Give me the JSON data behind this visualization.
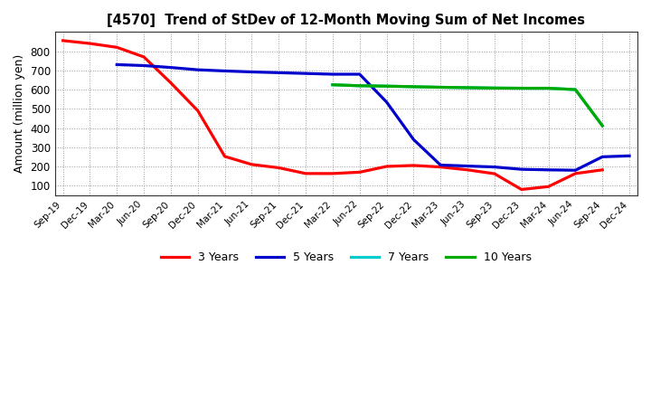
{
  "title": "[4570]  Trend of StDev of 12-Month Moving Sum of Net Incomes",
  "ylabel": "Amount (million yen)",
  "background_color": "#ffffff",
  "grid_color": "#aaaaaa",
  "ylim": [
    50,
    900
  ],
  "yticks": [
    100,
    200,
    300,
    400,
    500,
    600,
    700,
    800
  ],
  "x_labels": [
    "Sep-19",
    "Dec-19",
    "Mar-20",
    "Jun-20",
    "Sep-20",
    "Dec-20",
    "Mar-21",
    "Jun-21",
    "Sep-21",
    "Dec-21",
    "Mar-22",
    "Jun-22",
    "Sep-22",
    "Dec-22",
    "Mar-23",
    "Jun-23",
    "Sep-23",
    "Dec-23",
    "Mar-24",
    "Jun-24",
    "Sep-24",
    "Dec-24"
  ],
  "series": [
    {
      "name": "3 Years",
      "color": "#ff0000",
      "x_indices": [
        0,
        1,
        2,
        3,
        4,
        5,
        6,
        7,
        8,
        9,
        10,
        11,
        12,
        13,
        14,
        15,
        16,
        17,
        18,
        19,
        20
      ],
      "y": [
        855,
        840,
        820,
        770,
        635,
        490,
        252,
        210,
        193,
        163,
        163,
        170,
        200,
        205,
        197,
        182,
        162,
        80,
        95,
        163,
        182
      ]
    },
    {
      "name": "5 Years",
      "color": "#0000cc",
      "x_indices": [
        2,
        3,
        4,
        5,
        6,
        7,
        8,
        9,
        10,
        11,
        12,
        13,
        14,
        15,
        16,
        17,
        18,
        19,
        20,
        21
      ],
      "y": [
        730,
        725,
        715,
        703,
        697,
        692,
        688,
        684,
        680,
        680,
        535,
        340,
        207,
        202,
        197,
        185,
        182,
        180,
        250,
        255
      ]
    },
    {
      "name": "7 Years",
      "color": "#00cccc",
      "x_indices": [
        10,
        11,
        12,
        13,
        14,
        15,
        16,
        17,
        18,
        19,
        20
      ],
      "y": [
        625,
        620,
        618,
        615,
        612,
        610,
        608,
        607,
        607,
        600,
        412
      ]
    },
    {
      "name": "10 Years",
      "color": "#00aa00",
      "x_indices": [
        10,
        11,
        12,
        13,
        14,
        15,
        16,
        17,
        18,
        19,
        20
      ],
      "y": [
        625,
        620,
        618,
        615,
        612,
        610,
        608,
        607,
        607,
        600,
        412
      ]
    }
  ],
  "legend_labels": [
    "3 Years",
    "5 Years",
    "7 Years",
    "10 Years"
  ],
  "legend_colors": [
    "#ff0000",
    "#0000cc",
    "#00cccc",
    "#00aa00"
  ]
}
